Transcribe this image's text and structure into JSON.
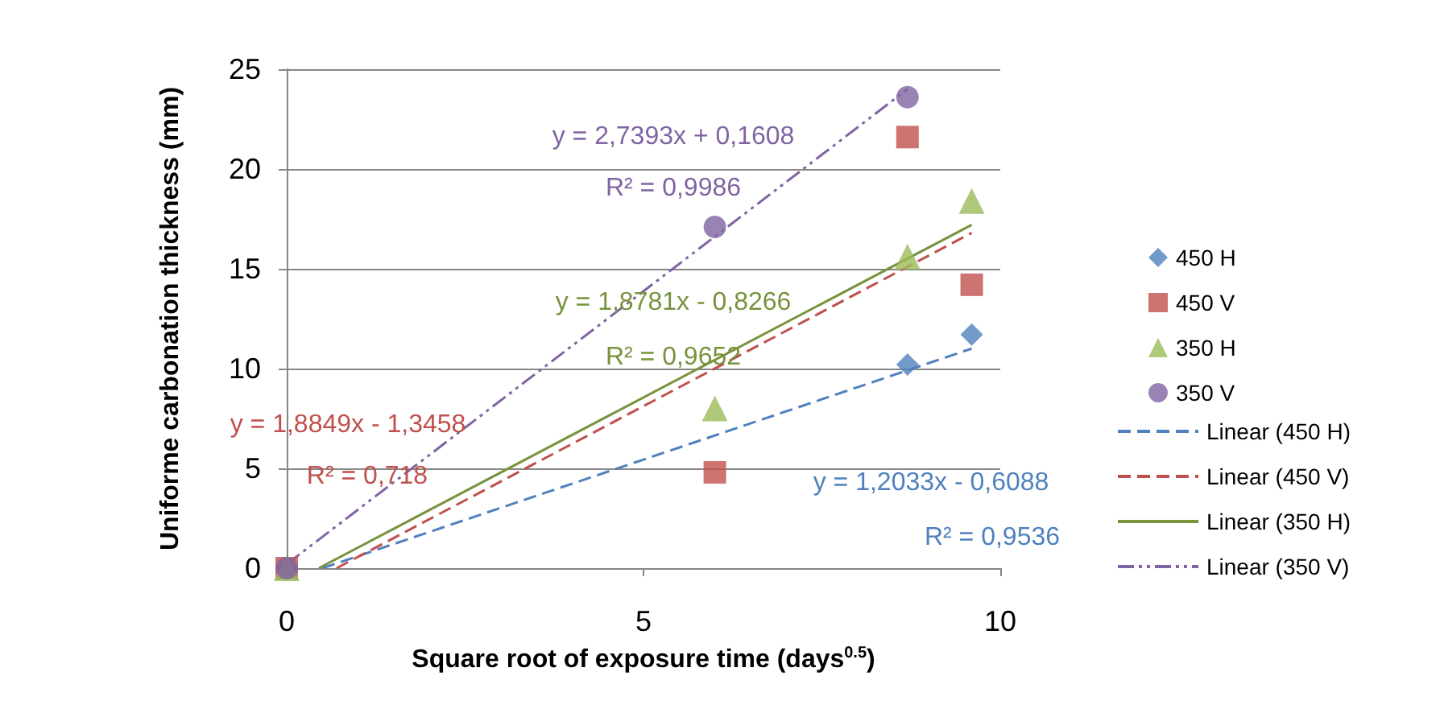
{
  "chart_data": {
    "type": "scatter",
    "xlabel": "Square root of exposure time (days$^{0.5}$)",
    "ylabel": "Uniforme carbonation thickness (mm)",
    "xlim": [
      0,
      10
    ],
    "xticks": [
      0,
      5,
      10
    ],
    "ylim": [
      0,
      25
    ],
    "yticks": [
      0,
      5,
      10,
      15,
      20,
      25
    ],
    "grid": "y",
    "legend": "right",
    "series": [
      {
        "name": "450 H",
        "color": "#4f81bd",
        "marker": "diamond",
        "x": [
          0,
          6,
          8.7,
          9.6
        ],
        "values": [
          0,
          null,
          10.2,
          11.7
        ]
      },
      {
        "name": "450 V",
        "color": "#c0504d",
        "marker": "square",
        "x": [
          0,
          6,
          8.7,
          9.6
        ],
        "values": [
          0,
          4.8,
          21.6,
          14.2
        ]
      },
      {
        "name": "350 H",
        "color": "#9bbb59",
        "marker": "triangle",
        "x": [
          0,
          6,
          8.7,
          9.6
        ],
        "values": [
          0,
          8.0,
          15.6,
          18.4
        ]
      },
      {
        "name": "350 V",
        "color": "#8064a2",
        "marker": "circle",
        "x": [
          0,
          6,
          8.7
        ],
        "values": [
          0,
          17.1,
          23.6
        ]
      },
      {
        "name": "Linear (450 H)",
        "type": "line",
        "color": "#4f81bd",
        "line_style": "dashed",
        "marker": "none",
        "x": [
          0.5,
          9.6
        ],
        "values": [
          0,
          11.0
        ]
      },
      {
        "name": "Linear (450 V)",
        "type": "line",
        "color": "#c0504d",
        "line_style": "dashed",
        "marker": "none",
        "x": [
          0.7,
          9.6
        ],
        "values": [
          0,
          16.8
        ]
      },
      {
        "name": "Linear (350 H)",
        "type": "line",
        "color": "#77933c",
        "line_style": "solid",
        "marker": "none",
        "x": [
          0.45,
          9.6
        ],
        "values": [
          0,
          17.2
        ]
      },
      {
        "name": "Linear (350 V)",
        "type": "line",
        "color": "#8064a2",
        "line_style": "dotted",
        "marker": "none",
        "x": [
          0,
          8.7
        ],
        "values": [
          0.2,
          24.0
        ]
      }
    ],
    "annotations": [
      "y = 1,2033x - 0,6088",
      "R² = 0,9536",
      "y = 1,8849x - 1,3458",
      "R² = 0,718",
      "y = 1,8781x - 0,8266",
      "R² = 0,9652",
      "y = 2,7393x + 0,1608",
      "R² = 0,9986"
    ]
  }
}
